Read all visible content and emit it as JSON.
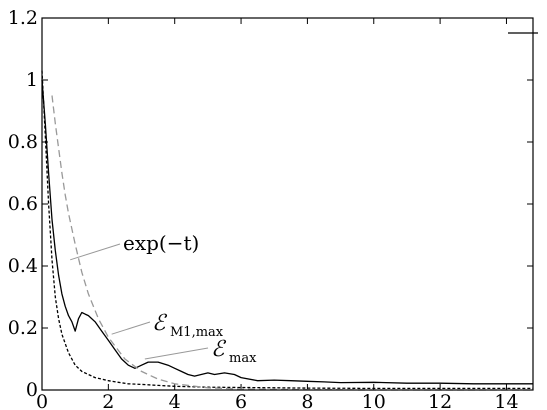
{
  "chart_data": {
    "type": "line",
    "title": "",
    "xlabel": "",
    "ylabel": "",
    "xlim": [
      0,
      14.8
    ],
    "ylim": [
      0,
      1.2
    ],
    "xticks": [
      0,
      2,
      4,
      6,
      8,
      10,
      12,
      14
    ],
    "yticks": [
      0,
      0.2,
      0.4,
      0.6,
      0.8,
      1,
      1.2
    ],
    "xtick_labels": [
      "0",
      "2",
      "4",
      "6",
      "8",
      "10",
      "12",
      "14"
    ],
    "ytick_labels": [
      "0",
      "0.2",
      "0.4",
      "0.6",
      "0.8",
      "1",
      "1.2"
    ],
    "grid": false,
    "legend": "top-right",
    "legend_entries": [
      ""
    ],
    "series": [
      {
        "style": "solid",
        "color": "#000000",
        "x": [
          0,
          0.1,
          0.2,
          0.3,
          0.4,
          0.5,
          0.6,
          0.7,
          0.8,
          0.9,
          1.0,
          1.1,
          1.2,
          1.3,
          1.4,
          1.6,
          1.8,
          2.0,
          2.2,
          2.4,
          2.6,
          2.8,
          3.0,
          3.2,
          3.5,
          3.8,
          4.0,
          4.2,
          4.4,
          4.6,
          4.8,
          5.0,
          5.2,
          5.5,
          5.8,
          6.0,
          6.5,
          7.0,
          7.5,
          8.0,
          8.5,
          9.0,
          10.0,
          11.0,
          12.0,
          13.0,
          14.0,
          14.8
        ],
        "y": [
          1.0,
          0.86,
          0.7,
          0.55,
          0.45,
          0.37,
          0.31,
          0.27,
          0.24,
          0.22,
          0.19,
          0.23,
          0.25,
          0.245,
          0.24,
          0.22,
          0.19,
          0.16,
          0.13,
          0.1,
          0.08,
          0.07,
          0.08,
          0.09,
          0.09,
          0.08,
          0.07,
          0.06,
          0.05,
          0.045,
          0.05,
          0.055,
          0.05,
          0.055,
          0.05,
          0.04,
          0.03,
          0.032,
          0.03,
          0.028,
          0.026,
          0.024,
          0.025,
          0.022,
          0.022,
          0.02,
          0.02,
          0.02
        ]
      },
      {
        "style": "dashed",
        "color": "#000000",
        "x": [
          0,
          0.1,
          0.2,
          0.3,
          0.4,
          0.5,
          0.6,
          0.8,
          1.0,
          1.2,
          1.4,
          1.6,
          1.8,
          2.0,
          2.3,
          2.6,
          3.0,
          3.5,
          4.0,
          5.0,
          6.0,
          8.0,
          10.0,
          12.0,
          14.8
        ],
        "y": [
          1.03,
          0.82,
          0.6,
          0.42,
          0.3,
          0.23,
          0.18,
          0.12,
          0.08,
          0.06,
          0.05,
          0.04,
          0.035,
          0.03,
          0.025,
          0.02,
          0.018,
          0.015,
          0.012,
          0.009,
          0.008,
          0.006,
          0.005,
          0.005,
          0.005
        ]
      },
      {
        "style": "dashed",
        "color": "#999999",
        "x": [
          0.3,
          0.4,
          0.5,
          0.6,
          0.7,
          0.8,
          1.0,
          1.2,
          1.4,
          1.7,
          2.0,
          2.5,
          3.0,
          3.5,
          4.0,
          5.0,
          6.0,
          8.0,
          10.0,
          12.0,
          14.8
        ],
        "y": [
          0.95,
          0.86,
          0.78,
          0.7,
          0.63,
          0.57,
          0.47,
          0.38,
          0.31,
          0.23,
          0.17,
          0.1,
          0.06,
          0.035,
          0.02,
          0.007,
          0.003,
          0.001,
          0.0,
          0.0,
          0.0
        ]
      }
    ],
    "annotations": [
      {
        "text": "exp(−t)",
        "anchor": [
          0.85,
          0.42
        ]
      },
      {
        "main": "ℰ",
        "sub": "M1,max",
        "anchor": [
          2.1,
          0.18
        ]
      },
      {
        "main": "ℰ",
        "sub": "max",
        "anchor": [
          3.1,
          0.1
        ]
      }
    ]
  }
}
